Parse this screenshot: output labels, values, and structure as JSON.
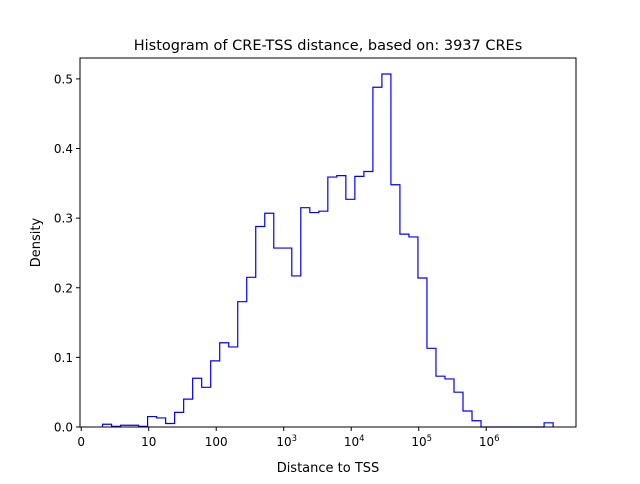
{
  "chart_data": {
    "type": "histogram-step",
    "title": "Histogram of CRE-TSS distance, based on: 3937 CREs",
    "xlabel": "Distance to TSS",
    "ylabel": "Density",
    "x_scale": "log10",
    "xlim_log10": [
      -0.018,
      7.33
    ],
    "ylim": [
      0,
      0.53
    ],
    "grid": false,
    "line_color": "#0000ff",
    "bin_start_log10": 0.316,
    "bin_width_log10": 0.1335,
    "values": [
      0.004,
      0.001,
      0.0025,
      0.0025,
      0.001,
      0.015,
      0.013,
      0.005,
      0.021,
      0.04,
      0.07,
      0.057,
      0.095,
      0.121,
      0.115,
      0.18,
      0.215,
      0.288,
      0.307,
      0.257,
      0.257,
      0.217,
      0.315,
      0.308,
      0.31,
      0.359,
      0.361,
      0.327,
      0.36,
      0.367,
      0.488,
      0.507,
      0.348,
      0.277,
      0.273,
      0.214,
      0.113,
      0.073,
      0.069,
      0.05,
      0.023,
      0.009,
      0,
      0,
      0,
      0,
      0,
      0,
      0,
      0.006
    ],
    "xticks": [
      {
        "value_log10": 0,
        "label": "0",
        "sup": ""
      },
      {
        "value_log10": 1,
        "label": "10",
        "sup": ""
      },
      {
        "value_log10": 2,
        "label": "100",
        "sup": ""
      },
      {
        "value_log10": 3,
        "label": "10",
        "sup": "3"
      },
      {
        "value_log10": 4,
        "label": "10",
        "sup": "4"
      },
      {
        "value_log10": 5,
        "label": "10",
        "sup": "5"
      },
      {
        "value_log10": 6,
        "label": "10",
        "sup": "6"
      }
    ],
    "yticks": [
      {
        "value": 0.0,
        "label": "0.0"
      },
      {
        "value": 0.1,
        "label": "0.1"
      },
      {
        "value": 0.2,
        "label": "0.2"
      },
      {
        "value": 0.3,
        "label": "0.3"
      },
      {
        "value": 0.4,
        "label": "0.4"
      },
      {
        "value": 0.5,
        "label": "0.5"
      }
    ]
  }
}
